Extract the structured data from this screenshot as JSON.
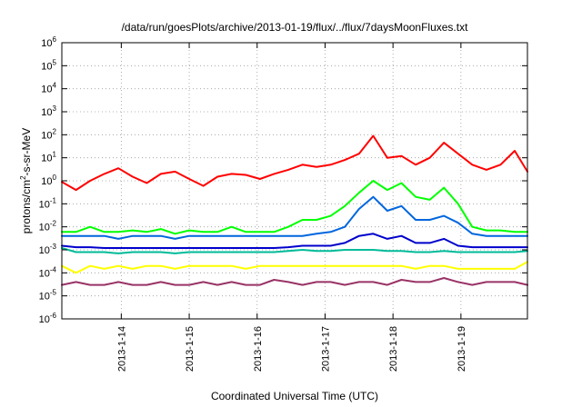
{
  "chart_data": {
    "type": "line",
    "title": "/data/run/goesPlots/archive/2013-01-19/flux/../flux/7daysMoonFluxes.txt",
    "xlabel": "Coordinated Universal Time (UTC)",
    "ylabel": {
      "pre": "protons/cm",
      "sup": "2",
      "post": "-s-sr-MeV"
    },
    "y_scale": "log",
    "ylim": [
      1e-06,
      1000000.0
    ],
    "xlim": [
      "2013-01-13 03:00",
      "2013-01-19 23:30"
    ],
    "grid": true,
    "legend": "none",
    "y_ticks": [
      {
        "base": "10",
        "exp": "-6",
        "value": 1e-06
      },
      {
        "base": "10",
        "exp": "-5",
        "value": 1e-05
      },
      {
        "base": "10",
        "exp": "-4",
        "value": 0.0001
      },
      {
        "base": "10",
        "exp": "-3",
        "value": 0.001
      },
      {
        "base": "10",
        "exp": "-2",
        "value": 0.01
      },
      {
        "base": "10",
        "exp": "-1",
        "value": 0.1
      },
      {
        "base": "10",
        "exp": "0",
        "value": 1
      },
      {
        "base": "10",
        "exp": "1",
        "value": 10
      },
      {
        "base": "10",
        "exp": "2",
        "value": 100
      },
      {
        "base": "10",
        "exp": "3",
        "value": 1000
      },
      {
        "base": "10",
        "exp": "4",
        "value": 10000
      },
      {
        "base": "10",
        "exp": "5",
        "value": 100000
      },
      {
        "base": "10",
        "exp": "6",
        "value": 1000000
      }
    ],
    "x_ticks": [
      {
        "label": "2013-1-14",
        "time": "2013-01-14 00:00"
      },
      {
        "label": "2013-1-15",
        "time": "2013-01-15 00:00"
      },
      {
        "label": "2013-1-16",
        "time": "2013-01-16 00:00"
      },
      {
        "label": "2013-1-17",
        "time": "2013-01-17 00:00"
      },
      {
        "label": "2013-1-18",
        "time": "2013-01-18 00:00"
      },
      {
        "label": "2013-1-19",
        "time": "2013-01-19 00:00"
      }
    ],
    "x": [
      "2013-01-13 03:00",
      "2013-01-13 08:00",
      "2013-01-13 13:00",
      "2013-01-13 18:00",
      "2013-01-13 23:00",
      "2013-01-14 04:00",
      "2013-01-14 09:00",
      "2013-01-14 14:00",
      "2013-01-14 19:00",
      "2013-01-15 00:00",
      "2013-01-15 05:00",
      "2013-01-15 10:00",
      "2013-01-15 15:00",
      "2013-01-15 20:00",
      "2013-01-16 01:00",
      "2013-01-16 06:00",
      "2013-01-16 11:00",
      "2013-01-16 16:00",
      "2013-01-16 21:00",
      "2013-01-17 02:00",
      "2013-01-17 07:00",
      "2013-01-17 12:00",
      "2013-01-17 17:00",
      "2013-01-17 22:00",
      "2013-01-18 03:00",
      "2013-01-18 08:00",
      "2013-01-18 13:00",
      "2013-01-18 18:00",
      "2013-01-18 23:00",
      "2013-01-19 04:00",
      "2013-01-19 09:00",
      "2013-01-19 14:00",
      "2013-01-19 19:00",
      "2013-01-19 23:30"
    ],
    "series": [
      {
        "color": "#ff0000",
        "values": [
          0.9,
          0.4,
          1.0,
          2.0,
          3.5,
          1.5,
          0.8,
          2.0,
          2.5,
          1.2,
          0.6,
          1.5,
          2.0,
          1.8,
          1.2,
          2.0,
          3.0,
          5.0,
          4.0,
          5.0,
          8.0,
          15,
          90,
          10,
          12,
          5,
          10,
          45,
          15,
          5,
          3,
          5,
          20,
          2.5
        ]
      },
      {
        "color": "#00ff00",
        "values": [
          0.006,
          0.006,
          0.01,
          0.006,
          0.006,
          0.007,
          0.006,
          0.008,
          0.005,
          0.007,
          0.006,
          0.006,
          0.01,
          0.006,
          0.006,
          0.006,
          0.01,
          0.02,
          0.02,
          0.03,
          0.08,
          0.3,
          1.0,
          0.4,
          0.8,
          0.2,
          0.15,
          0.5,
          0.1,
          0.01,
          0.007,
          0.007,
          0.006,
          0.006
        ]
      },
      {
        "color": "#0066dd",
        "values": [
          0.004,
          0.004,
          0.004,
          0.004,
          0.003,
          0.004,
          0.004,
          0.004,
          0.003,
          0.004,
          0.004,
          0.004,
          0.004,
          0.004,
          0.004,
          0.004,
          0.004,
          0.004,
          0.005,
          0.006,
          0.01,
          0.06,
          0.2,
          0.05,
          0.08,
          0.02,
          0.02,
          0.03,
          0.015,
          0.005,
          0.004,
          0.004,
          0.004,
          0.004
        ]
      },
      {
        "color": "#0000cc",
        "values": [
          0.0015,
          0.0013,
          0.0013,
          0.0012,
          0.0012,
          0.0012,
          0.0012,
          0.0012,
          0.0012,
          0.0012,
          0.0012,
          0.0012,
          0.0012,
          0.0012,
          0.0012,
          0.0012,
          0.0013,
          0.0015,
          0.0015,
          0.0015,
          0.002,
          0.004,
          0.005,
          0.003,
          0.004,
          0.002,
          0.002,
          0.003,
          0.0015,
          0.0013,
          0.0013,
          0.0013,
          0.0013,
          0.0013
        ]
      },
      {
        "color": "#00bb99",
        "values": [
          0.0012,
          0.0008,
          0.0008,
          0.0008,
          0.0007,
          0.0008,
          0.0008,
          0.0008,
          0.0007,
          0.0008,
          0.0008,
          0.0008,
          0.0008,
          0.0008,
          0.0008,
          0.0008,
          0.0009,
          0.001,
          0.0009,
          0.0009,
          0.001,
          0.001,
          0.001,
          0.0009,
          0.0009,
          0.0008,
          0.0008,
          0.0009,
          0.0008,
          0.0008,
          0.0008,
          0.0008,
          0.0008,
          0.0009
        ]
      },
      {
        "color": "#ffff00",
        "values": [
          0.0002,
          0.0001,
          0.0002,
          0.00015,
          0.0002,
          0.00015,
          0.0002,
          0.0002,
          0.00015,
          0.0002,
          0.0002,
          0.0002,
          0.0002,
          0.00015,
          0.0002,
          0.0002,
          0.0002,
          0.0002,
          0.0002,
          0.0002,
          0.0002,
          0.0002,
          0.0002,
          0.0002,
          0.0002,
          0.00015,
          0.0002,
          0.0002,
          0.00015,
          0.00015,
          0.00015,
          0.00015,
          0.00015,
          0.0003
        ]
      },
      {
        "color": "#993366",
        "values": [
          3e-05,
          4e-05,
          3e-05,
          3e-05,
          4e-05,
          3e-05,
          3e-05,
          4e-05,
          3e-05,
          3e-05,
          4e-05,
          3e-05,
          4e-05,
          3e-05,
          3e-05,
          5e-05,
          4e-05,
          3e-05,
          4e-05,
          4e-05,
          3e-05,
          4e-05,
          4e-05,
          3e-05,
          5e-05,
          4e-05,
          4e-05,
          6e-05,
          4e-05,
          3e-05,
          4e-05,
          4e-05,
          4e-05,
          3e-05
        ]
      }
    ]
  }
}
